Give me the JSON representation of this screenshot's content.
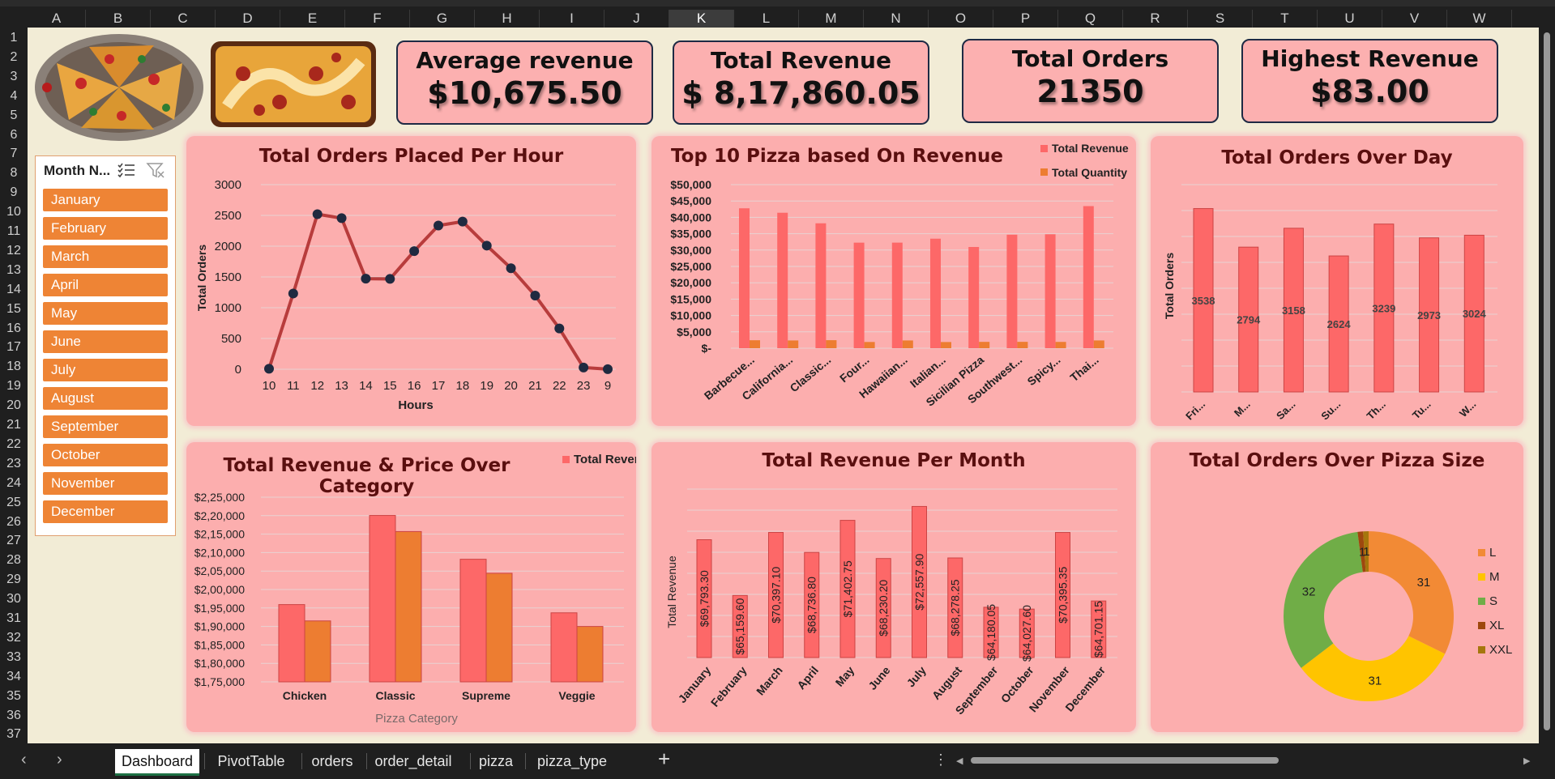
{
  "columns": [
    "A",
    "B",
    "C",
    "D",
    "E",
    "F",
    "G",
    "H",
    "I",
    "J",
    "K",
    "L",
    "M",
    "N",
    "O",
    "P",
    "Q",
    "R",
    "S",
    "T",
    "U",
    "V",
    "W"
  ],
  "selected_column": "K",
  "rows": [
    "1",
    "2",
    "3",
    "4",
    "5",
    "6",
    "7",
    "8",
    "9",
    "10",
    "11",
    "12",
    "13",
    "14",
    "15",
    "16",
    "17",
    "18",
    "19",
    "20",
    "21",
    "22",
    "23",
    "24",
    "25",
    "26",
    "27",
    "28",
    "29",
    "30",
    "31",
    "32",
    "33",
    "34",
    "35",
    "36",
    "37"
  ],
  "kpis": [
    {
      "label": "Average revenue",
      "value": "$10,675.50"
    },
    {
      "label": "Total Revenue",
      "value": "$ 8,17,860.05"
    },
    {
      "label": "Total Orders",
      "value": "21350"
    },
    {
      "label": "Highest Revenue",
      "value": "$83.00"
    }
  ],
  "slicer": {
    "header": "Month N...",
    "items": [
      "January",
      "February",
      "March",
      "April",
      "May",
      "June",
      "July",
      "August",
      "September",
      "October",
      "November",
      "December"
    ]
  },
  "tabs": [
    "Dashboard",
    "PivotTable",
    "orders",
    "order_detail",
    "pizza",
    "pizza_type"
  ],
  "active_tab": "Dashboard",
  "colors": {
    "bar_red": "#fd6868",
    "bar_orange": "#ed7d31",
    "line": "#b83c3c",
    "dot": "#1f2a40",
    "panel": "#fcaeae",
    "title": "#5a0f0f"
  },
  "chart_data": [
    {
      "id": "orders_per_hour",
      "type": "line",
      "title": "Total Orders Placed Per Hour",
      "xlabel": "Hours",
      "ylabel": "Total Orders",
      "categories": [
        "10",
        "11",
        "12",
        "13",
        "14",
        "15",
        "16",
        "17",
        "18",
        "19",
        "20",
        "21",
        "22",
        "23",
        "9"
      ],
      "values": [
        8,
        1231,
        2520,
        2455,
        1472,
        1468,
        1920,
        2336,
        2399,
        2009,
        1642,
        1198,
        663,
        28,
        1
      ],
      "ylim": [
        0,
        3000
      ],
      "yticks": [
        "3000",
        "2500",
        "2000",
        "1500",
        "1000",
        "500",
        "0"
      ],
      "grid": true
    },
    {
      "id": "top10_pizza",
      "type": "bar",
      "title": "Top 10 Pizza based On Revenue",
      "categories": [
        "Barbecue...",
        "California...",
        "Classic...",
        "Four...",
        "Hawaiian...",
        "Italian...",
        "Sicilian Pizza",
        "Southwest...",
        "Spicy...",
        "Thai..."
      ],
      "series": [
        {
          "name": "Total Revenue",
          "values": [
            42768,
            41409,
            38180,
            32265,
            32273,
            33476,
            30940,
            34705,
            34831,
            43434
          ]
        },
        {
          "name": "Total Quantity",
          "values": [
            2432,
            2370,
            2453,
            1902,
            2370,
            1887,
            1938,
            1946,
            1924,
            2371
          ]
        }
      ],
      "ylim": [
        0,
        50000
      ],
      "yticks": [
        "$50,000",
        "$45,000",
        "$40,000",
        "$35,000",
        "$30,000",
        "$25,000",
        "$20,000",
        "$15,000",
        "$10,000",
        "$5,000",
        "$-"
      ],
      "legend": "top-right",
      "grid": true
    },
    {
      "id": "orders_over_day",
      "type": "bar",
      "title": "Total Orders Over Day",
      "ylabel": "Total Orders",
      "categories": [
        "Fri...",
        "M...",
        "Sa...",
        "Su...",
        "Th...",
        "Tu...",
        "W..."
      ],
      "values": [
        3538,
        2794,
        3158,
        2624,
        3239,
        2973,
        3024
      ],
      "labels": [
        "3538",
        "2794",
        "3158",
        "2624",
        "3239",
        "2973",
        "3024"
      ],
      "ylim": [
        0,
        4000
      ],
      "grid": true
    },
    {
      "id": "revenue_price_category",
      "type": "bar",
      "title": "Total Revenue & Price Over Category",
      "xlabel": "Pizza Category",
      "categories": [
        "Chicken",
        "Classic",
        "Supreme",
        "Veggie"
      ],
      "series": [
        {
          "name": "Total Revenue",
          "values": [
            195919,
            220053,
            208197,
            193690
          ]
        },
        {
          "name": "",
          "values": [
            191500,
            215700,
            204400,
            190000
          ]
        }
      ],
      "legend_label": "Total Revenue",
      "ylim": [
        175000,
        225000
      ],
      "yticks": [
        "$2,25,000",
        "$2,20,000",
        "$2,15,000",
        "$2,10,000",
        "$2,05,000",
        "$2,00,000",
        "$1,95,000",
        "$1,90,000",
        "$1,85,000",
        "$1,80,000",
        "$1,75,000"
      ],
      "legend": "top-right",
      "grid": true
    },
    {
      "id": "revenue_per_month",
      "type": "bar",
      "title": "Total Revenue Per Month",
      "ylabel": "Total Revenue",
      "categories": [
        "January",
        "February",
        "March",
        "April",
        "May",
        "June",
        "July",
        "August",
        "September",
        "October",
        "November",
        "December"
      ],
      "values": [
        69793.3,
        65159.6,
        70397.1,
        68736.8,
        71402.75,
        68230.2,
        72557.9,
        68278.25,
        64180.05,
        64027.6,
        70395.35,
        64701.15
      ],
      "labels": [
        "$69,793.30",
        "$65,159.60",
        "$70,397.10",
        "$68,736.80",
        "$71,402.75",
        "$68,230.20",
        "$72,557.90",
        "$68,278.25",
        "$64,180.05",
        "$64,027.60",
        "$70,395.35",
        "$64,701.15"
      ],
      "ylim": [
        60000,
        74000
      ],
      "grid": true
    },
    {
      "id": "orders_pizza_size",
      "type": "pie",
      "title": "Total Orders Over Pizza Size",
      "categories": [
        "L",
        "M",
        "S",
        "XL",
        "XXL"
      ],
      "values": [
        31,
        31,
        32,
        1,
        1
      ],
      "labels": [
        "31",
        "31",
        "32",
        "1",
        "1"
      ],
      "colors": [
        "#f28a35",
        "#ffc400",
        "#70ad47",
        "#9e480e",
        "#a5760c"
      ],
      "legend": "right"
    }
  ]
}
